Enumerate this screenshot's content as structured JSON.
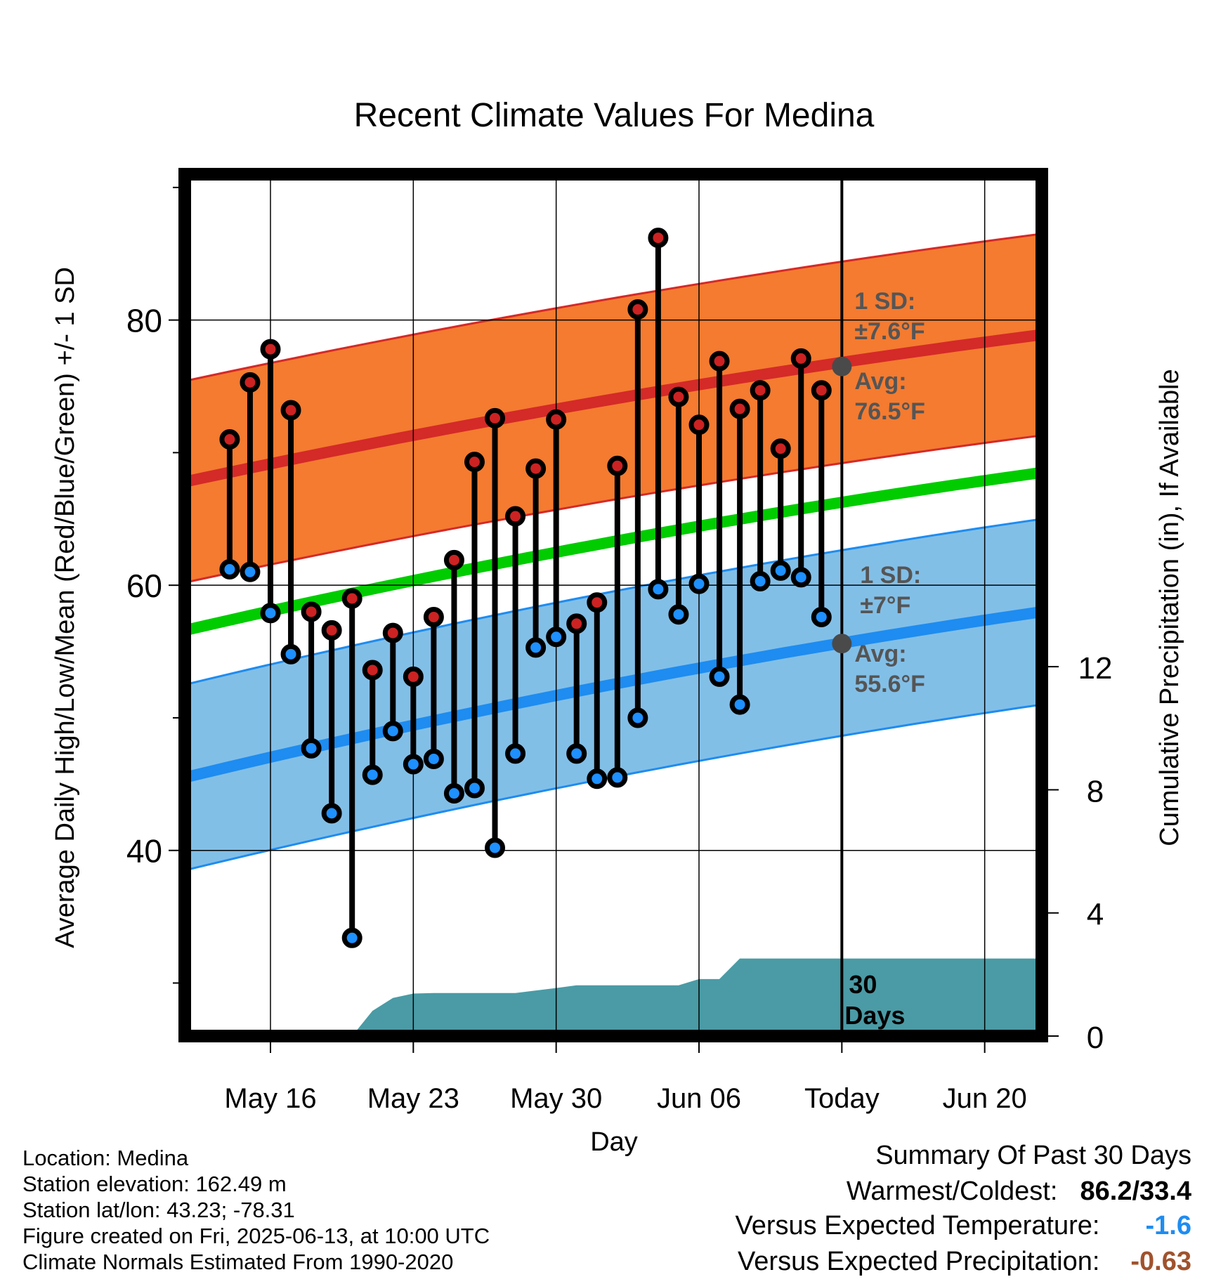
{
  "chart_data": {
    "type": "line",
    "title": "Recent Climate Values For Medina",
    "xlabel": "Day",
    "ylabel": "Average Daily High/Low/Mean (Red/Blue/Green) +/- 1 SD",
    "y2label": "Cumulative Precipitation (in), If Available",
    "x_tick_labels": [
      "May 16",
      "May 23",
      "May 30",
      "Jun 06",
      "Today",
      "Jun 20"
    ],
    "y_ticks": [
      "40",
      "60",
      "80"
    ],
    "y2_ticks": [
      "0",
      "4",
      "8",
      "12"
    ],
    "ylim": [
      26,
      91
    ],
    "y2lim": [
      0,
      28
    ],
    "xlim_days": [
      -32.2,
      9.8
    ],
    "grid": true,
    "today_offset_days": 0,
    "days": [
      -30,
      -29,
      -28,
      -27,
      -26,
      -25,
      -24,
      -23,
      -22,
      -21,
      -20,
      -19,
      -18,
      -17,
      -16,
      -15,
      -14,
      -13,
      -12,
      -11,
      -10,
      -9,
      -8,
      -7,
      -6,
      -5,
      -4,
      -3,
      -2,
      -1
    ],
    "series": [
      {
        "name": "High",
        "color": "#cc2222",
        "values": [
          71.0,
          75.3,
          77.8,
          73.2,
          58.0,
          56.6,
          59.0,
          53.6,
          56.4,
          53.1,
          57.6,
          61.9,
          69.3,
          72.6,
          65.2,
          68.8,
          72.5,
          57.1,
          58.7,
          69.0,
          80.8,
          86.2,
          74.2,
          72.1,
          76.9,
          73.3,
          74.7,
          70.3,
          77.1,
          74.7
        ]
      },
      {
        "name": "Low",
        "color": "#1e90ff",
        "values": [
          61.2,
          61.0,
          57.9,
          54.8,
          47.7,
          42.8,
          33.4,
          45.7,
          49.0,
          46.5,
          46.9,
          44.3,
          44.7,
          40.2,
          47.3,
          55.3,
          56.1,
          47.3,
          45.4,
          45.5,
          50.0,
          59.7,
          57.8,
          60.1,
          53.1,
          51.0,
          60.3,
          61.1,
          60.6,
          57.6
        ]
      },
      {
        "name": "Cumulative Precipitation",
        "color": "#4a9ba5",
        "axis": "right",
        "x": [
          -24,
          -23,
          -22,
          -21,
          -20,
          -16,
          -14,
          -13,
          -8,
          -7,
          -6,
          -5,
          -4,
          9.8
        ],
        "values": [
          0,
          0.82,
          1.24,
          1.38,
          1.4,
          1.4,
          1.56,
          1.65,
          1.65,
          1.85,
          1.85,
          2.52,
          2.52,
          2.52
        ]
      }
    ],
    "normals": {
      "x": [
        -32.2,
        9.8
      ],
      "high_avg": [
        67.8,
        78.9
      ],
      "high_sd": 7.6,
      "low_avg": [
        45.5,
        58.0
      ],
      "low_sd": 7.0,
      "mean_avg": [
        56.6,
        68.5
      ],
      "colors": {
        "high_band": "#f47b30",
        "high_line": "#d42a28",
        "low_band": "#82bfe7",
        "low_line": "#1e8cf0",
        "mean_line": "#00cc00",
        "precip": "#4a9ba5"
      }
    },
    "annotations": {
      "high_sd_label": "1 SD:",
      "high_sd_value": "±7.6°F",
      "high_avg_label": "Avg:",
      "high_avg_value": "76.5°F",
      "low_sd_label": "1 SD:",
      "low_sd_value": "±7°F",
      "low_avg_label": "Avg:",
      "low_avg_value": "55.6°F",
      "today_high_avg": 76.5,
      "today_low_avg": 55.6,
      "period_label_1": "30",
      "period_label_2": "Days"
    }
  },
  "station": {
    "location": "Location: Medina",
    "elevation": "Station elevation: 162.49 m",
    "latlon": "Station lat/lon: 43.23; -78.31",
    "created": "Figure created on Fri, 2025-06-13, at 10:00 UTC",
    "normals": "Climate Normals Estimated From 1990-2020"
  },
  "summary": {
    "title": "Summary Of Past 30 Days",
    "warm_cold_label": "Warmest/Coldest:",
    "warm_cold_value": "86.2/33.4",
    "temp_label": "Versus Expected Temperature:",
    "temp_value": "-1.6",
    "temp_color": "#1e8cf0",
    "precip_label": "Versus Expected Precipitation:",
    "precip_value": "-0.63",
    "precip_color": "#a0522d"
  }
}
